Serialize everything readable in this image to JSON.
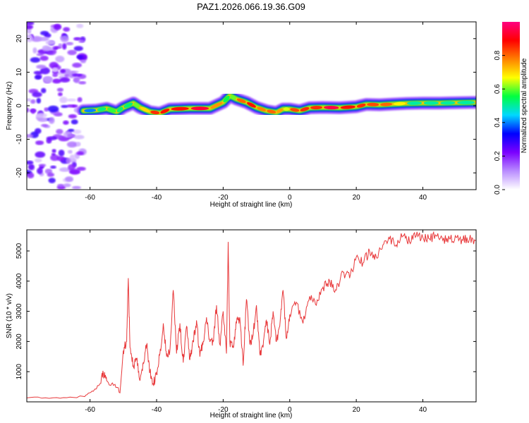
{
  "title": "PAZ1.2026.066.19.36.G09",
  "colors": {
    "snr_line": "#e8383a",
    "spectrum_background": "#ffffff",
    "ridge_peak": "#ff1a1a"
  },
  "chart_data": [
    {
      "type": "heatmap",
      "name": "spectrogram",
      "xlabel": "Height of straight line (km)",
      "ylabel": "Frequency (Hz)",
      "xlim": [
        -79,
        56
      ],
      "ylim": [
        -25,
        25
      ],
      "xticks": [
        -60,
        -40,
        -20,
        0,
        20,
        40
      ],
      "yticks": [
        -20,
        -10,
        0,
        10,
        20
      ],
      "grid": false,
      "ridge": {
        "x": [
          -62,
          -58,
          -55,
          -52,
          -50,
          -47,
          -45,
          -42,
          -39,
          -36,
          -30,
          -24,
          -20,
          -18,
          -16,
          -13,
          -10,
          -7,
          -4,
          -2,
          0,
          3,
          6,
          10,
          15,
          20,
          23,
          27,
          31,
          35,
          40,
          45,
          50,
          56
        ],
        "y": [
          -1.5,
          -1.3,
          -0.8,
          -1.8,
          -0.5,
          0.8,
          -0.5,
          -1.8,
          -2.2,
          -1.0,
          -0.8,
          -0.8,
          1.0,
          3.0,
          2.0,
          1.0,
          -0.5,
          -1.5,
          -2.0,
          -1.0,
          -1.0,
          -1.5,
          -0.6,
          -0.5,
          -0.6,
          -0.3,
          0.4,
          0.3,
          0.5,
          0.7,
          0.8,
          0.8,
          0.9,
          1.0
        ],
        "amplitude": [
          0.35,
          0.45,
          0.6,
          0.55,
          0.5,
          0.55,
          0.65,
          0.75,
          0.95,
          0.8,
          0.95,
          0.92,
          0.6,
          0.5,
          0.7,
          0.9,
          0.85,
          0.7,
          0.9,
          0.6,
          0.7,
          0.95,
          0.75,
          0.95,
          0.95,
          0.8,
          0.9,
          0.75,
          0.85,
          0.5,
          0.5,
          0.5,
          0.5,
          0.5
        ]
      },
      "noise_region": {
        "x": [
          -79,
          -62
        ],
        "amplitude": [
          0.05,
          0.3
        ]
      }
    },
    {
      "type": "colorbar",
      "label": "Normalized spectral amplitude",
      "range": [
        0.0,
        1.0
      ],
      "ticks": [
        "0.0",
        "0.2",
        "0.4",
        "0.6",
        "0.8"
      ],
      "colormap": [
        "#ffffff",
        "#b98cff",
        "#7b00ff",
        "#0000ff",
        "#00d8ff",
        "#00ff40",
        "#ffff00",
        "#ff8000",
        "#ff0000",
        "#ff0080"
      ]
    },
    {
      "type": "line",
      "name": "snr",
      "xlabel": "Height of straight line (km)",
      "ylabel": "SNR (10 * v/v)",
      "xlim": [
        -79,
        56
      ],
      "ylim": [
        0,
        5700
      ],
      "xticks": [
        -60,
        -40,
        -20,
        0,
        20,
        40
      ],
      "yticks": [
        1000,
        2000,
        3000,
        4000,
        5000
      ],
      "grid": false,
      "series": [
        {
          "x": [
            -79,
            -70,
            -62,
            -59,
            -57,
            -56,
            -55,
            -53,
            -51,
            -50,
            -49,
            -48.5,
            -48,
            -47,
            -46,
            -45,
            -44,
            -43,
            -42,
            -41,
            -40,
            -39,
            -38,
            -37,
            -36,
            -35,
            -34,
            -33,
            -32,
            -31,
            -30,
            -29,
            -28,
            -27,
            -26,
            -25,
            -24,
            -23,
            -22,
            -21,
            -20,
            -19,
            -18.5,
            -18,
            -17,
            -16,
            -15,
            -14,
            -13,
            -12,
            -11,
            -10,
            -9,
            -8,
            -7,
            -6,
            -5,
            -4,
            -3,
            -2,
            -1,
            0,
            2,
            4,
            6,
            8,
            10,
            12,
            14,
            16,
            18,
            20,
            22,
            24,
            26,
            28,
            30,
            32,
            34,
            36,
            38,
            40,
            42,
            44,
            46,
            48,
            50,
            52,
            54,
            56
          ],
          "y": [
            130,
            140,
            180,
            350,
            600,
            950,
            700,
            550,
            300,
            1700,
            2000,
            4100,
            1800,
            1200,
            1400,
            700,
            1300,
            1900,
            1000,
            600,
            900,
            1600,
            2600,
            1500,
            1700,
            3700,
            1600,
            2600,
            1300,
            2500,
            1400,
            2000,
            2700,
            1500,
            2000,
            2800,
            2000,
            2000,
            3200,
            1900,
            3000,
            1600,
            5300,
            2000,
            1800,
            2600,
            2800,
            1200,
            3400,
            1900,
            2200,
            3200,
            1600,
            1800,
            2700,
            1900,
            3000,
            2000,
            2500,
            3700,
            2100,
            2900,
            3300,
            2600,
            3500,
            3200,
            3800,
            4000,
            3700,
            4300,
            4100,
            4800,
            4600,
            5000,
            4800,
            5200,
            5400,
            5200,
            5500,
            5300,
            5500,
            5450,
            5400,
            5500,
            5350,
            5400,
            5450,
            5350,
            5400,
            5350
          ]
        }
      ]
    }
  ]
}
